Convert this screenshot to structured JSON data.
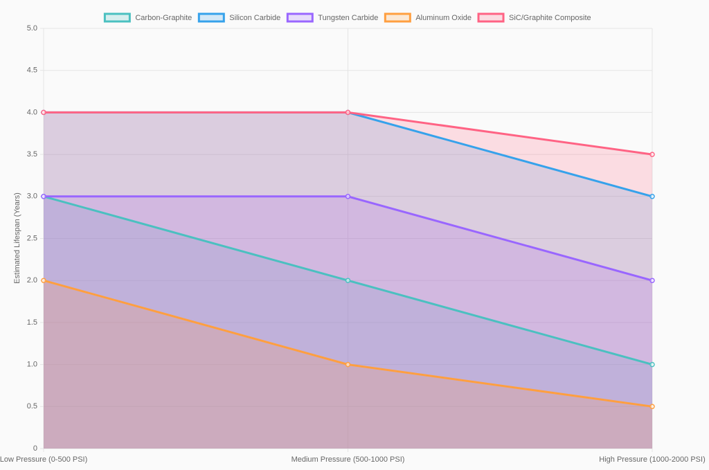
{
  "chart_data": {
    "type": "line",
    "y_label": "Estimated Lifespan (Years)",
    "categories": [
      "Low Pressure (0-500 PSI)",
      "Medium Pressure (500-1000 PSI)",
      "High Pressure (1000-2000 PSI)"
    ],
    "series": [
      {
        "name": "Carbon-Graphite",
        "color": "#4bc0c0",
        "values": [
          3,
          2,
          1
        ]
      },
      {
        "name": "Silicon Carbide",
        "color": "#36a2eb",
        "values": [
          4,
          4,
          3
        ]
      },
      {
        "name": "Tungsten Carbide",
        "color": "#9966ff",
        "values": [
          3,
          3,
          2
        ]
      },
      {
        "name": "Aluminum Oxide",
        "color": "#ff9f40",
        "values": [
          2,
          1,
          0.5
        ]
      },
      {
        "name": "SiC/Graphite Composite",
        "color": "#ff6384",
        "values": [
          4,
          4,
          3.5
        ]
      }
    ],
    "fill": true,
    "ylim": [
      0,
      5
    ],
    "yticks": [
      0,
      0.5,
      {
        "value": 1,
        "label": "1.0"
      },
      1.5,
      {
        "value": 2,
        "label": "2.0"
      },
      2.5,
      {
        "value": 3,
        "label": "3.0"
      },
      3.5,
      {
        "value": 4,
        "label": "4.0"
      },
      4.5,
      {
        "value": 5,
        "label": "5.0"
      }
    ],
    "grid": true,
    "legend": "top"
  }
}
